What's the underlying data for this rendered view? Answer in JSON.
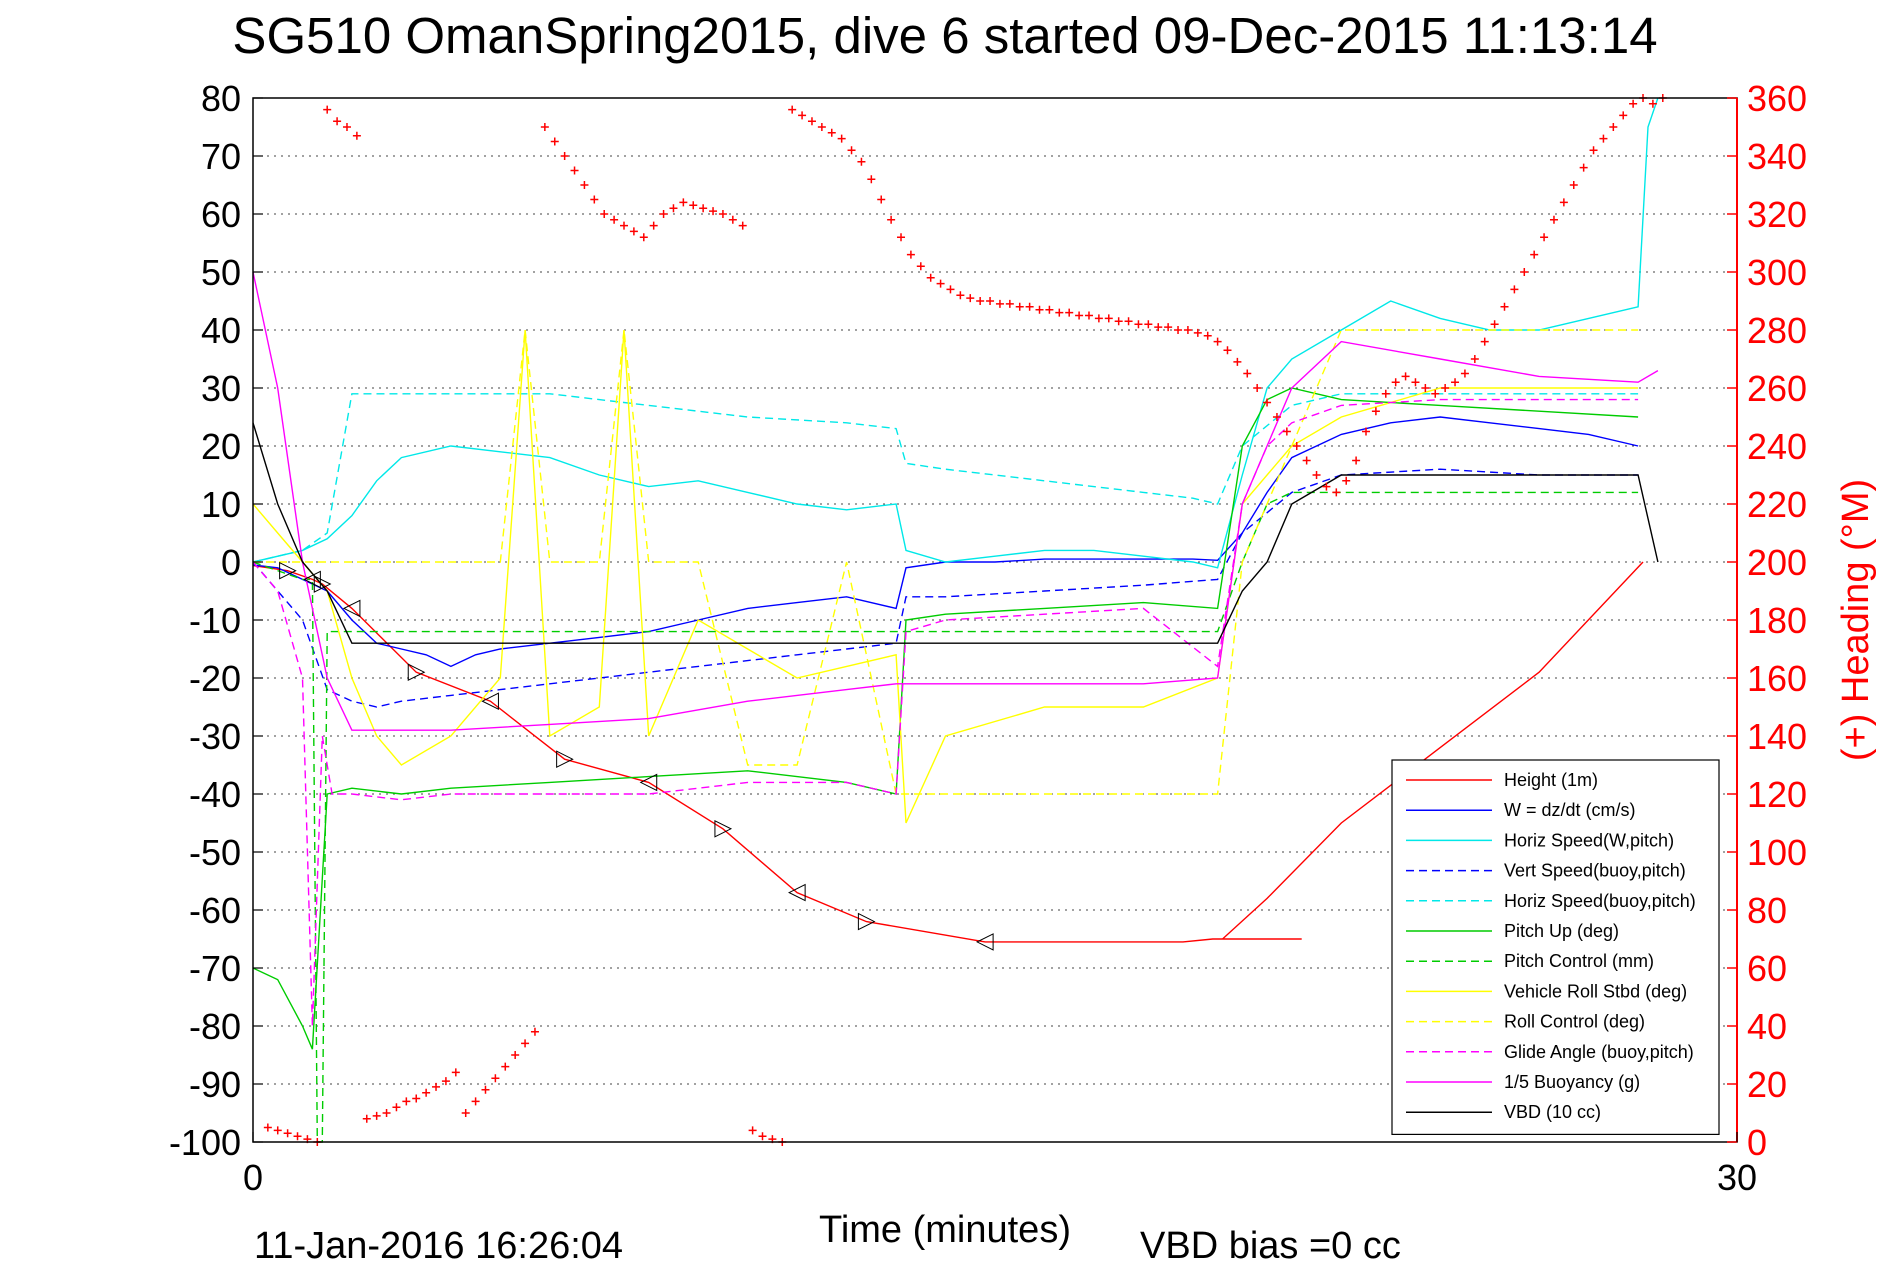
{
  "chart_data": {
    "type": "line",
    "title": "SG510 OmanSpring2015, dive 6 started 09-Dec-2015 11:13:14",
    "xlabel": "Time (minutes)",
    "ylabel_right": "(+) Heading (°M)",
    "xlim": [
      0,
      30
    ],
    "ylim": [
      -100,
      80
    ],
    "ylim_right": [
      0,
      360
    ],
    "x_ticks": [
      "0",
      "30"
    ],
    "y_ticks": [
      "80",
      "70",
      "60",
      "50",
      "40",
      "30",
      "20",
      "10",
      "0",
      "-10",
      "-20",
      "-30",
      "-40",
      "-50",
      "-60",
      "-70",
      "-80",
      "-90",
      "-100"
    ],
    "y_ticks_right": [
      "360",
      "340",
      "320",
      "300",
      "280",
      "260",
      "240",
      "220",
      "200",
      "180",
      "160",
      "140",
      "120",
      "100",
      "80",
      "60",
      "40",
      "20",
      "0"
    ],
    "grid": true,
    "legend_position": "bottom-right",
    "footer_timestamp": "11-Jan-2016 16:26:04",
    "footer_note": "VBD bias =0 cc",
    "series": [
      {
        "name": "Height (1m)",
        "color": "#ff0000",
        "dash": "solid",
        "x": [
          0,
          0.7,
          1.2,
          1.4,
          2.0,
          3.3,
          4.8,
          6.3,
          8.0,
          9.5,
          11.0,
          12.4,
          14.8,
          16.7,
          18.4,
          18.8,
          19.4,
          21.2,
          19.6,
          20.5,
          22.0,
          24.0,
          26.0,
          28.1
        ],
        "y": [
          -0.6,
          -1.5,
          -3,
          -3.8,
          -8,
          -19,
          -24,
          -34,
          -38,
          -46,
          -57,
          -62,
          -65.5,
          -65.5,
          -65.5,
          -65.5,
          -65,
          -65,
          -65,
          -58,
          -45,
          -32,
          -19,
          0
        ]
      },
      {
        "name": "W = dz/dt (cm/s)",
        "color": "#0000ff",
        "dash": "solid",
        "x": [
          0,
          0.5,
          1.0,
          1.5,
          2.0,
          2.5,
          3.0,
          3.5,
          4.0,
          4.5,
          5.0,
          6.0,
          7.0,
          8.0,
          9.0,
          10.0,
          11.0,
          12.0,
          13.0,
          13.2,
          14.0,
          15.0,
          16.0,
          17.0,
          18.0,
          19.0,
          19.5,
          20.0,
          20.5,
          21.0,
          22.0,
          23.0,
          24.0,
          25.0,
          26.0,
          27.0,
          28.0
        ],
        "y": [
          -0.5,
          -1,
          -3,
          -5,
          -10,
          -14,
          -15,
          -16,
          -18,
          -16,
          -15,
          -14,
          -13,
          -12,
          -10,
          -8,
          -7,
          -6,
          -8,
          -1,
          0,
          0,
          0.5,
          0.5,
          0.5,
          0.5,
          0.3,
          5,
          12,
          18,
          22,
          24,
          25,
          24,
          23,
          22,
          20
        ]
      },
      {
        "name": "Horiz Speed(W,pitch)",
        "color": "#00e8e8",
        "dash": "solid",
        "x": [
          0,
          1.0,
          1.5,
          2.0,
          2.5,
          3.0,
          4.0,
          5.0,
          6.0,
          7.0,
          8.0,
          9.0,
          10.0,
          11.0,
          12.0,
          13.0,
          13.2,
          14.0,
          15.0,
          16.0,
          17.0,
          18.0,
          19.0,
          19.5,
          20.0,
          20.5,
          21.0,
          22.0,
          23.0,
          24.0,
          25.0,
          26.0,
          27.0,
          28.0,
          28.2,
          28.4
        ],
        "y": [
          0,
          2,
          4,
          8,
          14,
          18,
          20,
          19,
          18,
          15,
          13,
          14,
          12,
          10,
          9,
          10,
          2,
          0,
          1,
          2,
          2,
          1,
          0,
          -1,
          15,
          30,
          35,
          40,
          45,
          42,
          40,
          40,
          42,
          44,
          75,
          80
        ]
      },
      {
        "name": "Vert Speed(buoy,pitch)",
        "color": "#0000ff",
        "dash": "dashed",
        "x": [
          0,
          1.0,
          1.5,
          2.0,
          2.5,
          3.0,
          4.0,
          5.0,
          6.0,
          7.0,
          8.0,
          9.0,
          10.0,
          11.0,
          12.0,
          13.0,
          13.2,
          14.0,
          16.0,
          18.0,
          19.5,
          20.0,
          21.0,
          22.0,
          24.0,
          26.0,
          28.0
        ],
        "y": [
          0,
          -10,
          -22,
          -24,
          -25,
          -24,
          -23,
          -22,
          -21,
          -20,
          -19,
          -18,
          -17,
          -16,
          -15,
          -14,
          -6,
          -6,
          -5,
          -4,
          -3,
          5,
          12,
          15,
          16,
          15,
          15
        ]
      },
      {
        "name": "Horiz Speed(buoy,pitch)",
        "color": "#00e8e8",
        "dash": "dashed",
        "x": [
          0,
          1.0,
          1.5,
          2.0,
          2.5,
          3.0,
          4.0,
          6.0,
          8.0,
          10.0,
          12.0,
          13.0,
          13.2,
          14.0,
          16.0,
          18.0,
          19.0,
          19.5,
          20.0,
          21.0,
          22.0,
          24.0,
          26.0,
          28.0
        ],
        "y": [
          0,
          2,
          5,
          29,
          29,
          29,
          29,
          29,
          27,
          25,
          24,
          23,
          17,
          16,
          14,
          12,
          11,
          10,
          20,
          27,
          29,
          29,
          29,
          29
        ]
      },
      {
        "name": "Pitch Up (deg)",
        "color": "#00cc00",
        "dash": "solid",
        "x": [
          0,
          0.5,
          1.0,
          1.2,
          1.5,
          2.0,
          3.0,
          4.0,
          6.0,
          8.0,
          10.0,
          12.0,
          13.0,
          13.2,
          14.0,
          16.0,
          18.0,
          19.5,
          20.0,
          20.5,
          21.0,
          22.0,
          24.0,
          26.0,
          28.0
        ],
        "y": [
          -70,
          -72,
          -80,
          -84,
          -40,
          -39,
          -40,
          -39,
          -38,
          -37,
          -36,
          -38,
          -40,
          -10,
          -9,
          -8,
          -7,
          -8,
          20,
          28,
          30,
          28,
          27,
          26,
          25
        ]
      },
      {
        "name": "Pitch Control (mm)",
        "color": "#00cc00",
        "dash": "dashed",
        "x": [
          0,
          1.0,
          1.2,
          1.3,
          1.4,
          1.5,
          2.0,
          6.0,
          10.0,
          13.0,
          19.5,
          20.0,
          20.5,
          21.0,
          28.0
        ],
        "y": [
          0,
          -3,
          -3,
          -100,
          -100,
          -12,
          -12,
          -12,
          -12,
          -12,
          -12,
          0,
          10,
          12,
          12
        ]
      },
      {
        "name": "Vehicle Roll Stbd (deg)",
        "color": "#ffff00",
        "dash": "solid",
        "x": [
          0,
          0.5,
          1.0,
          1.5,
          2.0,
          2.5,
          3.0,
          4.0,
          5.0,
          5.5,
          6.0,
          7.0,
          7.5,
          8.0,
          9.0,
          10.0,
          11.0,
          12.0,
          13.0,
          13.2,
          14.0,
          16.0,
          18.0,
          19.5,
          20.0,
          21.0,
          22.0,
          24.0,
          26.0,
          28.0
        ],
        "y": [
          10,
          5,
          0,
          -5,
          -20,
          -30,
          -35,
          -30,
          -20,
          40,
          -30,
          -25,
          40,
          -30,
          -10,
          -15,
          -20,
          -18,
          -16,
          -45,
          -30,
          -25,
          -25,
          -20,
          10,
          20,
          25,
          30,
          30,
          30
        ]
      },
      {
        "name": "Roll Control (deg)",
        "color": "#ffff00",
        "dash": "dashed",
        "x": [
          0,
          1.0,
          1.5,
          2.0,
          3.0,
          4.0,
          5.0,
          5.5,
          6.0,
          7.0,
          7.5,
          8.0,
          9.0,
          10.0,
          11.0,
          12.0,
          13.0,
          14.0,
          16.0,
          18.0,
          19.5,
          20.0,
          22.0,
          24.0,
          28.0
        ],
        "y": [
          0,
          0,
          0,
          0,
          0,
          0,
          0,
          40,
          0,
          0,
          40,
          0,
          0,
          -35,
          -35,
          0,
          -40,
          -40,
          -40,
          -40,
          -40,
          0,
          40,
          40,
          40
        ]
      },
      {
        "name": "Glide Angle (buoy,pitch)",
        "color": "#ff00ff",
        "dash": "dashed",
        "x": [
          0,
          0.5,
          1.0,
          1.2,
          1.4,
          1.6,
          2.0,
          3.0,
          4.0,
          6.0,
          8.0,
          10.0,
          12.0,
          13.0,
          13.2,
          14.0,
          16.0,
          18.0,
          19.5,
          20.0,
          20.5,
          21.0,
          22.0,
          24.0,
          26.0,
          28.0
        ],
        "y": [
          0,
          -5,
          -20,
          -80,
          -30,
          -40,
          -40,
          -41,
          -40,
          -40,
          -40,
          -38,
          -38,
          -40,
          -12,
          -10,
          -9,
          -8,
          -18,
          10,
          20,
          24,
          27,
          28,
          28,
          28
        ]
      },
      {
        "name": "1/5 Buoyancy (g)",
        "color": "#ff00ff",
        "dash": "solid",
        "x": [
          0,
          0.5,
          1.0,
          1.5,
          2.0,
          4.0,
          6.0,
          8.0,
          10.0,
          12.0,
          13.0,
          16.0,
          18.0,
          19.5,
          20.0,
          21.0,
          22.0,
          24.0,
          26.0,
          28.0,
          28.4
        ],
        "y": [
          50,
          30,
          0,
          -20,
          -29,
          -29,
          -28,
          -27,
          -24,
          -22,
          -21,
          -21,
          -21,
          -20,
          10,
          30,
          38,
          35,
          32,
          31,
          33
        ]
      },
      {
        "name": "VBD (10 cc)",
        "color": "#000000",
        "dash": "solid",
        "x": [
          0,
          0.5,
          1.0,
          1.5,
          2.0,
          4.0,
          8.0,
          12.0,
          16.0,
          19.0,
          19.5,
          20.0,
          20.5,
          21.0,
          22.0,
          28.0,
          28.4
        ],
        "y": [
          24,
          10,
          0,
          -5,
          -14,
          -14,
          -14,
          -14,
          -14,
          -14,
          -14,
          -5,
          0,
          10,
          15,
          15,
          0
        ]
      }
    ],
    "heading": {
      "name": "(+) Heading (°M)",
      "color": "#ff0000",
      "axis": "right",
      "x": [
        0.3,
        0.5,
        0.7,
        0.9,
        1.1,
        1.3,
        1.5,
        1.7,
        1.9,
        2.1,
        2.3,
        2.5,
        2.7,
        2.9,
        3.1,
        3.3,
        3.5,
        3.7,
        3.9,
        4.1,
        4.3,
        4.5,
        4.7,
        4.9,
        5.1,
        5.3,
        5.5,
        5.7,
        5.9,
        6.1,
        6.3,
        6.5,
        6.7,
        6.9,
        7.1,
        7.3,
        7.5,
        7.7,
        7.9,
        8.1,
        8.3,
        8.5,
        8.7,
        8.9,
        9.1,
        9.3,
        9.5,
        9.7,
        9.9,
        10.1,
        10.3,
        10.5,
        10.7,
        10.9,
        11.1,
        11.3,
        11.5,
        11.7,
        11.9,
        12.1,
        12.3,
        12.5,
        12.7,
        12.9,
        13.1,
        13.3,
        13.5,
        13.7,
        13.9,
        14.1,
        14.3,
        14.5,
        14.7,
        14.9,
        15.1,
        15.3,
        15.5,
        15.7,
        15.9,
        16.1,
        16.3,
        16.5,
        16.7,
        16.9,
        17.1,
        17.3,
        17.5,
        17.7,
        17.9,
        18.1,
        18.3,
        18.5,
        18.7,
        18.9,
        19.1,
        19.3,
        19.5,
        19.7,
        19.9,
        20.1,
        20.3,
        20.5,
        20.7,
        20.9,
        21.1,
        21.3,
        21.5,
        21.7,
        21.9,
        22.1,
        22.3,
        22.5,
        22.7,
        22.9,
        23.1,
        23.3,
        23.5,
        23.7,
        23.9,
        24.1,
        24.3,
        24.5,
        24.7,
        24.9,
        25.1,
        25.3,
        25.5,
        25.7,
        25.9,
        26.1,
        26.3,
        26.5,
        26.7,
        26.9,
        27.1,
        27.3,
        27.5,
        27.7,
        27.9,
        28.1,
        28.3,
        28.5
      ],
      "y": [
        5,
        4,
        3,
        2,
        1,
        0,
        356,
        352,
        350,
        347,
        8,
        9,
        10,
        12,
        14,
        15,
        17,
        19,
        21,
        24,
        10,
        14,
        18,
        22,
        26,
        30,
        34,
        38,
        350,
        345,
        340,
        335,
        330,
        325,
        320,
        318,
        316,
        314,
        312,
        316,
        320,
        322,
        324,
        323,
        322,
        321,
        320,
        318,
        316,
        4,
        2,
        1,
        0,
        356,
        354,
        352,
        350,
        348,
        346,
        342,
        338,
        332,
        325,
        318,
        312,
        306,
        302,
        298,
        296,
        294,
        292,
        291,
        290,
        290,
        289,
        289,
        288,
        288,
        287,
        287,
        286,
        286,
        285,
        285,
        284,
        284,
        283,
        283,
        282,
        282,
        281,
        281,
        280,
        280,
        279,
        278,
        276,
        273,
        269,
        265,
        260,
        255,
        250,
        245,
        240,
        235,
        230,
        226,
        224,
        228,
        235,
        245,
        252,
        258,
        262,
        264,
        262,
        260,
        258,
        260,
        262,
        265,
        270,
        276,
        282,
        288,
        294,
        300,
        306,
        312,
        318,
        324,
        330,
        336,
        342,
        346,
        350,
        354,
        358,
        360,
        358,
        360
      ]
    }
  }
}
